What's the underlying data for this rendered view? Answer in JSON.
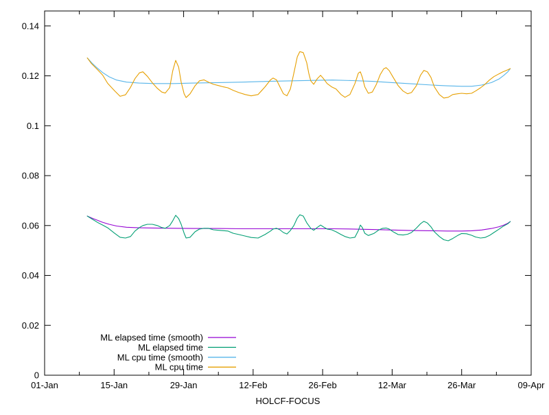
{
  "figure": {
    "background_color": "#ffffff",
    "text_color": "#000000",
    "border_color": "#000000"
  },
  "chart_data": {
    "type": "line",
    "title": "",
    "xlabel": "HOLCF-FOCUS",
    "ylabel": "",
    "grid": false,
    "legend_position": "inside-bottom-left",
    "x_axis": {
      "unit": "days-since-01-Jan",
      "xlim": [
        0,
        98
      ],
      "major_ticks": [
        {
          "pos": 0,
          "label": "01-Jan"
        },
        {
          "pos": 14,
          "label": "15-Jan"
        },
        {
          "pos": 28,
          "label": "29-Jan"
        },
        {
          "pos": 42,
          "label": "12-Feb"
        },
        {
          "pos": 56,
          "label": "26-Feb"
        },
        {
          "pos": 70,
          "label": "12-Mar"
        },
        {
          "pos": 84,
          "label": "26-Mar"
        },
        {
          "pos": 98,
          "label": "09-Apr"
        }
      ],
      "minor_ticks": [
        7,
        21,
        35,
        49,
        63,
        77,
        91
      ],
      "mirrored": true
    },
    "y_axis": {
      "ylim": [
        0,
        0.146
      ],
      "major_ticks": [
        {
          "pos": 0,
          "label": "0"
        },
        {
          "pos": 0.02,
          "label": "0.02"
        },
        {
          "pos": 0.04,
          "label": "0.04"
        },
        {
          "pos": 0.06,
          "label": "0.06"
        },
        {
          "pos": 0.08,
          "label": "0.08"
        },
        {
          "pos": 0.1,
          "label": "0.1"
        },
        {
          "pos": 0.12,
          "label": "0.12"
        },
        {
          "pos": 0.14,
          "label": "0.14"
        }
      ],
      "mirrored": true
    },
    "series": [
      {
        "name": "ML elapsed time (smooth)",
        "color": "#9400d3",
        "smooth": true,
        "points": [
          [
            8.6,
            0.0638
          ],
          [
            9.5,
            0.063
          ],
          [
            10.5,
            0.0622
          ],
          [
            11.7,
            0.0613
          ],
          [
            13,
            0.0605
          ],
          [
            14.5,
            0.0598
          ],
          [
            16.5,
            0.0593
          ],
          [
            19,
            0.0591
          ],
          [
            22,
            0.059
          ],
          [
            26,
            0.0589
          ],
          [
            30,
            0.0588
          ],
          [
            35,
            0.0588
          ],
          [
            40,
            0.0587
          ],
          [
            45,
            0.0587
          ],
          [
            50,
            0.0587
          ],
          [
            55,
            0.0587
          ],
          [
            58,
            0.0587
          ],
          [
            62,
            0.0586
          ],
          [
            66,
            0.0584
          ],
          [
            70,
            0.0582
          ],
          [
            74,
            0.058
          ],
          [
            78,
            0.0579
          ],
          [
            81,
            0.0578
          ],
          [
            84,
            0.0578
          ],
          [
            86,
            0.0579
          ],
          [
            88,
            0.0582
          ],
          [
            90,
            0.0588
          ],
          [
            91.5,
            0.0595
          ],
          [
            92.5,
            0.0602
          ],
          [
            93.3,
            0.0609
          ],
          [
            93.8,
            0.0616
          ]
        ]
      },
      {
        "name": "ML elapsed time",
        "color": "#009e73",
        "smooth": false,
        "points": [
          [
            8.6,
            0.0638
          ],
          [
            9.4,
            0.0628
          ],
          [
            10.8,
            0.0611
          ],
          [
            11.7,
            0.0602
          ],
          [
            12.7,
            0.0591
          ],
          [
            14.1,
            0.0569
          ],
          [
            15.2,
            0.0553
          ],
          [
            16.3,
            0.055
          ],
          [
            17.3,
            0.0556
          ],
          [
            18.2,
            0.0578
          ],
          [
            19.1,
            0.0592
          ],
          [
            19.8,
            0.06
          ],
          [
            20.7,
            0.0605
          ],
          [
            21.7,
            0.0605
          ],
          [
            22.7,
            0.06
          ],
          [
            23.6,
            0.0592
          ],
          [
            24.3,
            0.0589
          ],
          [
            25.2,
            0.06
          ],
          [
            25.8,
            0.0619
          ],
          [
            26.4,
            0.0641
          ],
          [
            27.0,
            0.0628
          ],
          [
            27.5,
            0.0605
          ],
          [
            28.1,
            0.0569
          ],
          [
            28.5,
            0.055
          ],
          [
            29.3,
            0.0553
          ],
          [
            30.3,
            0.0575
          ],
          [
            31.2,
            0.0586
          ],
          [
            32.1,
            0.0589
          ],
          [
            33.0,
            0.0589
          ],
          [
            34.0,
            0.0583
          ],
          [
            35.0,
            0.0581
          ],
          [
            36.9,
            0.0578
          ],
          [
            38.0,
            0.0569
          ],
          [
            39.1,
            0.0564
          ],
          [
            40.4,
            0.0558
          ],
          [
            41.6,
            0.0552
          ],
          [
            43.0,
            0.055
          ],
          [
            44.4,
            0.0564
          ],
          [
            45.5,
            0.0578
          ],
          [
            46.0,
            0.0586
          ],
          [
            46.7,
            0.0589
          ],
          [
            47.4,
            0.0583
          ],
          [
            48.1,
            0.0572
          ],
          [
            48.8,
            0.0566
          ],
          [
            49.5,
            0.058
          ],
          [
            50.2,
            0.06
          ],
          [
            50.9,
            0.063
          ],
          [
            51.4,
            0.0643
          ],
          [
            52.1,
            0.0638
          ],
          [
            52.8,
            0.0611
          ],
          [
            53.6,
            0.0589
          ],
          [
            54.2,
            0.0581
          ],
          [
            54.9,
            0.0592
          ],
          [
            55.6,
            0.0602
          ],
          [
            56.2,
            0.0594
          ],
          [
            56.9,
            0.0586
          ],
          [
            57.8,
            0.0583
          ],
          [
            58.7,
            0.0575
          ],
          [
            59.7,
            0.0564
          ],
          [
            60.5,
            0.0556
          ],
          [
            61.5,
            0.055
          ],
          [
            62.5,
            0.0553
          ],
          [
            63.2,
            0.058
          ],
          [
            63.6,
            0.0602
          ],
          [
            64.0,
            0.0592
          ],
          [
            64.5,
            0.0569
          ],
          [
            65.2,
            0.056
          ],
          [
            66.3,
            0.0568
          ],
          [
            67.3,
            0.0582
          ],
          [
            68.1,
            0.0589
          ],
          [
            68.8,
            0.059
          ],
          [
            69.4,
            0.0586
          ],
          [
            70.2,
            0.0575
          ],
          [
            71.2,
            0.0564
          ],
          [
            72.2,
            0.0562
          ],
          [
            73.1,
            0.0565
          ],
          [
            73.9,
            0.0572
          ],
          [
            74.9,
            0.059
          ],
          [
            75.7,
            0.0607
          ],
          [
            76.4,
            0.0617
          ],
          [
            77.1,
            0.061
          ],
          [
            77.8,
            0.0595
          ],
          [
            78.5,
            0.0575
          ],
          [
            79.5,
            0.0556
          ],
          [
            80.4,
            0.0543
          ],
          [
            81.3,
            0.0539
          ],
          [
            82.2,
            0.0548
          ],
          [
            83.2,
            0.056
          ],
          [
            84.0,
            0.0568
          ],
          [
            85.0,
            0.0567
          ],
          [
            86.0,
            0.0561
          ],
          [
            86.8,
            0.0554
          ],
          [
            87.8,
            0.055
          ],
          [
            88.7,
            0.0552
          ],
          [
            89.6,
            0.056
          ],
          [
            90.5,
            0.0572
          ],
          [
            91.5,
            0.0585
          ],
          [
            92.3,
            0.0596
          ],
          [
            93.3,
            0.0607
          ],
          [
            93.8,
            0.0616
          ]
        ]
      },
      {
        "name": "ML cpu time (smooth)",
        "color": "#56b4e9",
        "smooth": true,
        "points": [
          [
            8.6,
            0.1272
          ],
          [
            9.5,
            0.1252
          ],
          [
            10.5,
            0.1233
          ],
          [
            11.7,
            0.1213
          ],
          [
            13,
            0.1196
          ],
          [
            14.5,
            0.1183
          ],
          [
            16.5,
            0.1175
          ],
          [
            19,
            0.1171
          ],
          [
            22,
            0.1169
          ],
          [
            26,
            0.1169
          ],
          [
            30,
            0.1171
          ],
          [
            35,
            0.1173
          ],
          [
            40,
            0.1175
          ],
          [
            45,
            0.1178
          ],
          [
            50,
            0.118
          ],
          [
            55,
            0.1182
          ],
          [
            58,
            0.1183
          ],
          [
            62,
            0.1181
          ],
          [
            66,
            0.1178
          ],
          [
            70,
            0.1173
          ],
          [
            74,
            0.1168
          ],
          [
            78,
            0.1163
          ],
          [
            81,
            0.116
          ],
          [
            84,
            0.1158
          ],
          [
            86,
            0.1158
          ],
          [
            88,
            0.1163
          ],
          [
            90,
            0.1173
          ],
          [
            91.5,
            0.1187
          ],
          [
            92.5,
            0.1202
          ],
          [
            93.3,
            0.1216
          ],
          [
            93.8,
            0.1229
          ]
        ]
      },
      {
        "name": "ML cpu time",
        "color": "#e69f00",
        "smooth": false,
        "points": [
          [
            8.6,
            0.1272
          ],
          [
            9.4,
            0.125
          ],
          [
            10.8,
            0.1222
          ],
          [
            11.7,
            0.1203
          ],
          [
            12.7,
            0.117
          ],
          [
            14.1,
            0.114
          ],
          [
            15.2,
            0.1118
          ],
          [
            16.3,
            0.1124
          ],
          [
            17.3,
            0.1154
          ],
          [
            18.2,
            0.1189
          ],
          [
            19.1,
            0.1212
          ],
          [
            19.8,
            0.1216
          ],
          [
            20.7,
            0.1198
          ],
          [
            21.7,
            0.1172
          ],
          [
            22.7,
            0.115
          ],
          [
            23.6,
            0.1135
          ],
          [
            24.3,
            0.1131
          ],
          [
            25.2,
            0.1153
          ],
          [
            25.8,
            0.122
          ],
          [
            26.4,
            0.1262
          ],
          [
            27.0,
            0.1235
          ],
          [
            27.5,
            0.1175
          ],
          [
            28.1,
            0.1128
          ],
          [
            28.5,
            0.1113
          ],
          [
            29.3,
            0.1128
          ],
          [
            30.3,
            0.116
          ],
          [
            31.2,
            0.118
          ],
          [
            32.1,
            0.1184
          ],
          [
            33.0,
            0.1175
          ],
          [
            34.0,
            0.1166
          ],
          [
            35.0,
            0.1161
          ],
          [
            36.0,
            0.1156
          ],
          [
            36.9,
            0.1152
          ],
          [
            38.0,
            0.1142
          ],
          [
            39.1,
            0.1133
          ],
          [
            40.4,
            0.1125
          ],
          [
            41.6,
            0.112
          ],
          [
            43.0,
            0.1125
          ],
          [
            44.4,
            0.1156
          ],
          [
            45.5,
            0.1184
          ],
          [
            46.0,
            0.1191
          ],
          [
            46.7,
            0.1184
          ],
          [
            47.4,
            0.1156
          ],
          [
            48.1,
            0.1128
          ],
          [
            48.8,
            0.112
          ],
          [
            49.5,
            0.1147
          ],
          [
            50.2,
            0.1211
          ],
          [
            50.9,
            0.1276
          ],
          [
            51.4,
            0.1297
          ],
          [
            52.1,
            0.1293
          ],
          [
            52.8,
            0.1252
          ],
          [
            53.2,
            0.1211
          ],
          [
            53.6,
            0.118
          ],
          [
            54.2,
            0.1166
          ],
          [
            54.9,
            0.1188
          ],
          [
            55.6,
            0.1202
          ],
          [
            56.2,
            0.1188
          ],
          [
            56.9,
            0.1169
          ],
          [
            57.8,
            0.1156
          ],
          [
            58.7,
            0.1147
          ],
          [
            59.7,
            0.1125
          ],
          [
            60.5,
            0.1114
          ],
          [
            61.5,
            0.1125
          ],
          [
            62.5,
            0.1169
          ],
          [
            63.2,
            0.1211
          ],
          [
            63.6,
            0.1216
          ],
          [
            64.0,
            0.1194
          ],
          [
            64.5,
            0.1156
          ],
          [
            65.2,
            0.113
          ],
          [
            66.0,
            0.1135
          ],
          [
            66.8,
            0.1165
          ],
          [
            67.6,
            0.1205
          ],
          [
            68.3,
            0.1228
          ],
          [
            68.8,
            0.1233
          ],
          [
            69.4,
            0.1221
          ],
          [
            70.2,
            0.1194
          ],
          [
            71.2,
            0.1161
          ],
          [
            72.2,
            0.1139
          ],
          [
            73.1,
            0.1128
          ],
          [
            73.9,
            0.1133
          ],
          [
            74.9,
            0.1161
          ],
          [
            75.7,
            0.1202
          ],
          [
            76.4,
            0.1222
          ],
          [
            77.1,
            0.1216
          ],
          [
            77.8,
            0.1194
          ],
          [
            78.5,
            0.1156
          ],
          [
            79.5,
            0.1125
          ],
          [
            80.4,
            0.1111
          ],
          [
            81.3,
            0.1114
          ],
          [
            82.2,
            0.1125
          ],
          [
            83.2,
            0.1128
          ],
          [
            84.0,
            0.113
          ],
          [
            85.0,
            0.1128
          ],
          [
            86.0,
            0.113
          ],
          [
            86.8,
            0.1139
          ],
          [
            87.8,
            0.1152
          ],
          [
            88.7,
            0.1166
          ],
          [
            89.6,
            0.1183
          ],
          [
            90.5,
            0.1197
          ],
          [
            91.5,
            0.1208
          ],
          [
            92.3,
            0.1216
          ],
          [
            93.3,
            0.1224
          ],
          [
            93.8,
            0.1229
          ]
        ]
      }
    ]
  }
}
